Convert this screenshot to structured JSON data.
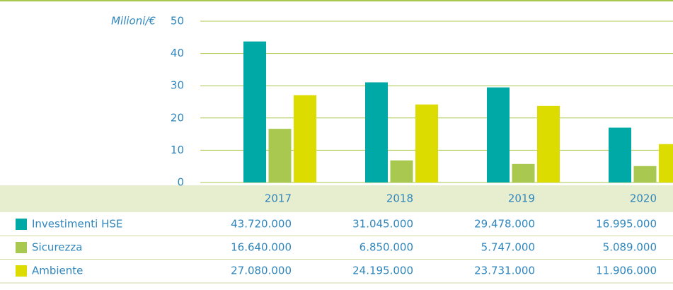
{
  "chart_data": {
    "type": "bar",
    "y_label": "Milioni/€",
    "categories": [
      "2017",
      "2018",
      "2019",
      "2020"
    ],
    "series": [
      {
        "name": "Investimenti HSE",
        "color": "#00a9a5",
        "values": [
          43.72,
          31.045,
          29.478,
          16.995
        ],
        "value_labels": [
          "43.720.000",
          "31.045.000",
          "29.478.000",
          "16.995.000"
        ]
      },
      {
        "name": "Sicurezza",
        "color": "#a9c84f",
        "values": [
          16.64,
          6.85,
          5.747,
          5.089
        ],
        "value_labels": [
          "16.640.000",
          "6.850.000",
          "5.747.000",
          "5.089.000"
        ]
      },
      {
        "name": "Ambiente",
        "color": "#dcdc00",
        "values": [
          27.08,
          24.195,
          23.731,
          11.906
        ],
        "value_labels": [
          "27.080.000",
          "24.195.000",
          "23.731.000",
          "11.906.000"
        ]
      }
    ],
    "ylim": [
      0,
      50
    ],
    "yticks": [
      0,
      10,
      20,
      30,
      40,
      50
    ],
    "grid": true
  }
}
